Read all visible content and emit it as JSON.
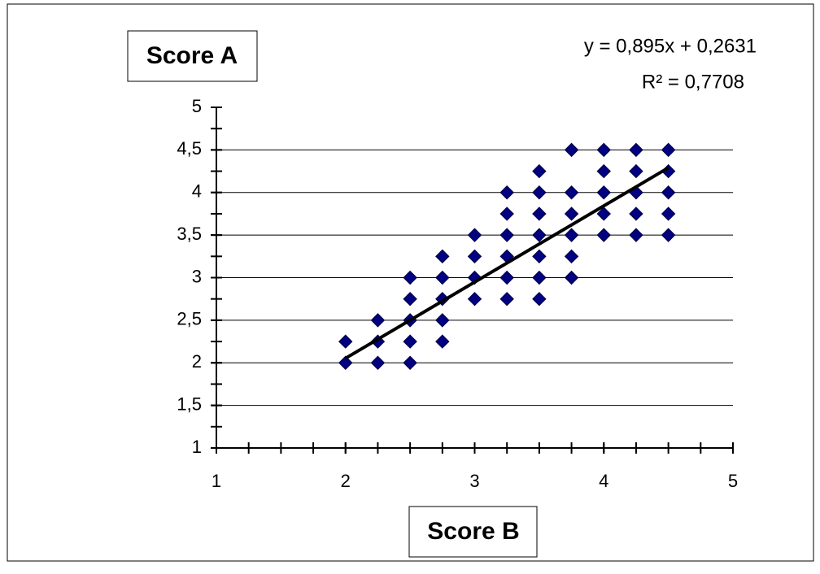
{
  "chart_data": {
    "type": "scatter",
    "x_label": "Score B",
    "y_label": "Score A",
    "annotations": [
      "y = 0,895x + 0,2631",
      "R² = 0,7708"
    ],
    "xlim": [
      1,
      5
    ],
    "ylim": [
      1,
      5
    ],
    "xticks": [
      1,
      2,
      3,
      4,
      5
    ],
    "yticks": [
      1,
      {
        "value": 1.5,
        "label": "1,5"
      },
      2,
      {
        "value": 2.5,
        "label": "2,5"
      },
      3,
      {
        "value": 3.5,
        "label": "3,5"
      },
      4,
      {
        "value": 4.5,
        "label": "4,5"
      },
      5
    ],
    "minor_step": 0.25,
    "grid": true,
    "color": "#000080",
    "x": [
      2,
      2,
      2.25,
      2.25,
      2.25,
      2.5,
      2.5,
      2.5,
      2.5,
      2.5,
      2.75,
      2.75,
      2.75,
      2.75,
      2.75,
      3,
      3,
      3,
      3,
      3.25,
      3.25,
      3.25,
      3.25,
      3.25,
      3.25,
      3.5,
      3.5,
      3.5,
      3.5,
      3.5,
      3.5,
      3.5,
      3.75,
      3.75,
      3.75,
      3.75,
      3.75,
      3.75,
      4,
      4,
      4,
      4,
      4,
      4.25,
      4.25,
      4.25,
      4.25,
      4.25,
      4.5,
      4.5,
      4.5,
      4.5,
      4.5
    ],
    "values": [
      2,
      2.25,
      2,
      2.25,
      2.5,
      2,
      2.25,
      2.5,
      2.75,
      3,
      2.25,
      2.5,
      2.75,
      3,
      3.25,
      2.75,
      3,
      3.25,
      3.5,
      2.75,
      3,
      3.25,
      3.5,
      3.75,
      4,
      2.75,
      3,
      3.25,
      3.5,
      3.75,
      4,
      4.25,
      3,
      3.25,
      3.5,
      3.75,
      4,
      4.5,
      3.5,
      3.75,
      4,
      4.25,
      4.5,
      3.5,
      3.75,
      4,
      4.25,
      4.5,
      3.5,
      3.75,
      4,
      4.25,
      4.5
    ],
    "trendline": {
      "x": [
        2,
        4.5
      ],
      "slope": 0.895,
      "intercept": 0.2631
    }
  }
}
